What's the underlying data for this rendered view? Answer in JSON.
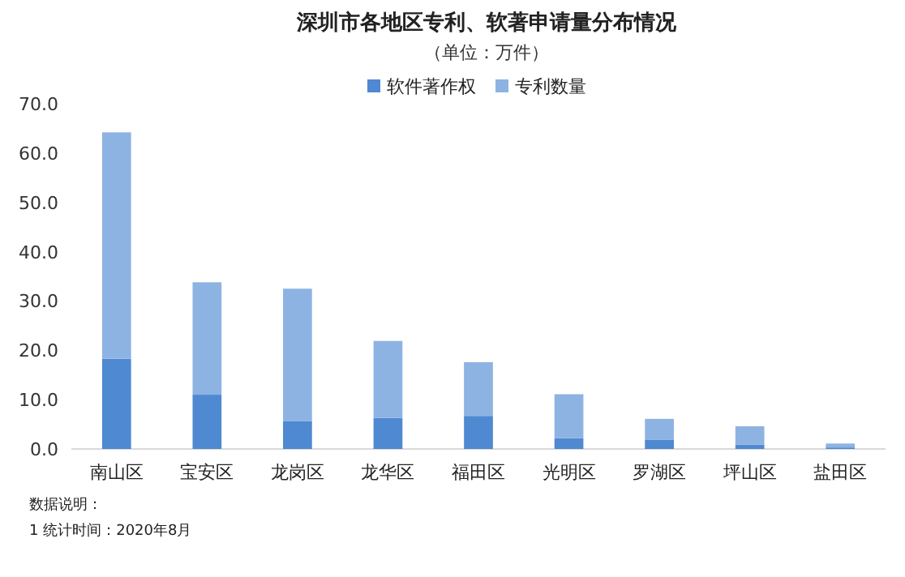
{
  "chart_data": {
    "type": "bar",
    "title": "深圳市各地区专利、软著申请量分布情况",
    "subtitle": "（单位：万件）",
    "categories": [
      "南山区",
      "宝安区",
      "龙岗区",
      "龙华区",
      "福田区",
      "光明区",
      "罗湖区",
      "坪山区",
      "盐田区"
    ],
    "series": [
      {
        "name": "软件著作权",
        "color": "#4f89d1",
        "values": [
          18.3,
          11.0,
          5.6,
          6.3,
          6.7,
          2.2,
          1.9,
          0.9,
          0.3
        ]
      },
      {
        "name": "专利数量",
        "color": "#8db3e2",
        "values": [
          45.9,
          22.8,
          26.9,
          15.6,
          10.9,
          8.9,
          4.2,
          3.7,
          0.8
        ]
      }
    ],
    "stacked": true,
    "legend": "top",
    "ylim": [
      0,
      70
    ],
    "yticks": [
      {
        "value": 0,
        "label": "0.0"
      },
      {
        "value": 10,
        "label": "10.0"
      },
      {
        "value": 20,
        "label": "20.0"
      },
      {
        "value": 30,
        "label": "30.0"
      },
      {
        "value": 40,
        "label": "40.0"
      },
      {
        "value": 50,
        "label": "50.0"
      },
      {
        "value": 60,
        "label": "60.0"
      },
      {
        "value": 70,
        "label": "70.0"
      }
    ],
    "annotations": [
      "数据说明：",
      "1 统计时间：2020年8月"
    ]
  }
}
